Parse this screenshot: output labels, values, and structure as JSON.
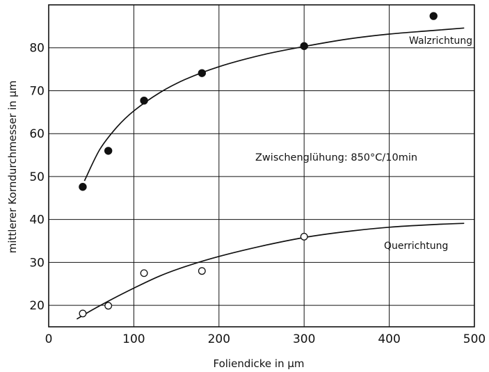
{
  "chart_data": {
    "type": "scatter",
    "title": "",
    "xlabel": "Foliendicke in µm",
    "ylabel": "mittlerer Korndurchmesser in µm",
    "xlim": [
      0,
      500
    ],
    "ylim": [
      15,
      90
    ],
    "xticks": [
      "0",
      "100",
      "200",
      "300",
      "400",
      "500"
    ],
    "yticks": [
      "20",
      "30",
      "40",
      "50",
      "60",
      "70",
      "80"
    ],
    "grid": true,
    "annotation": "Zwischenglühung: 850°C/10min",
    "series": [
      {
        "name": "Walzrichtung",
        "marker": "filled-circle",
        "points": [
          {
            "x": 40,
            "y": 47.6
          },
          {
            "x": 70,
            "y": 56.0
          },
          {
            "x": 112,
            "y": 67.7
          },
          {
            "x": 180,
            "y": 74.1
          },
          {
            "x": 300,
            "y": 80.4
          },
          {
            "x": 452,
            "y": 87.4
          }
        ],
        "fit": [
          {
            "x": 42,
            "y": 49.0
          },
          {
            "x": 60,
            "y": 56.3
          },
          {
            "x": 80,
            "y": 61.5
          },
          {
            "x": 100,
            "y": 65.3
          },
          {
            "x": 130,
            "y": 69.5
          },
          {
            "x": 160,
            "y": 72.6
          },
          {
            "x": 200,
            "y": 75.6
          },
          {
            "x": 250,
            "y": 78.3
          },
          {
            "x": 300,
            "y": 80.3
          },
          {
            "x": 350,
            "y": 82.0
          },
          {
            "x": 400,
            "y": 83.2
          },
          {
            "x": 450,
            "y": 84.0
          },
          {
            "x": 488,
            "y": 84.6
          }
        ]
      },
      {
        "name": "Querrichtung",
        "marker": "open-circle",
        "points": [
          {
            "x": 40,
            "y": 18.1
          },
          {
            "x": 70,
            "y": 19.9
          },
          {
            "x": 112,
            "y": 27.5
          },
          {
            "x": 180,
            "y": 28.0
          },
          {
            "x": 300,
            "y": 36.0
          },
          {
            "x": 452,
            "y": null
          }
        ],
        "fit": [
          {
            "x": 33,
            "y": 16.8
          },
          {
            "x": 50,
            "y": 18.8
          },
          {
            "x": 75,
            "y": 21.5
          },
          {
            "x": 100,
            "y": 24.0
          },
          {
            "x": 130,
            "y": 26.8
          },
          {
            "x": 160,
            "y": 29.0
          },
          {
            "x": 200,
            "y": 31.4
          },
          {
            "x": 250,
            "y": 33.8
          },
          {
            "x": 300,
            "y": 35.8
          },
          {
            "x": 350,
            "y": 37.2
          },
          {
            "x": 400,
            "y": 38.2
          },
          {
            "x": 450,
            "y": 38.8
          },
          {
            "x": 488,
            "y": 39.1
          }
        ]
      }
    ]
  }
}
